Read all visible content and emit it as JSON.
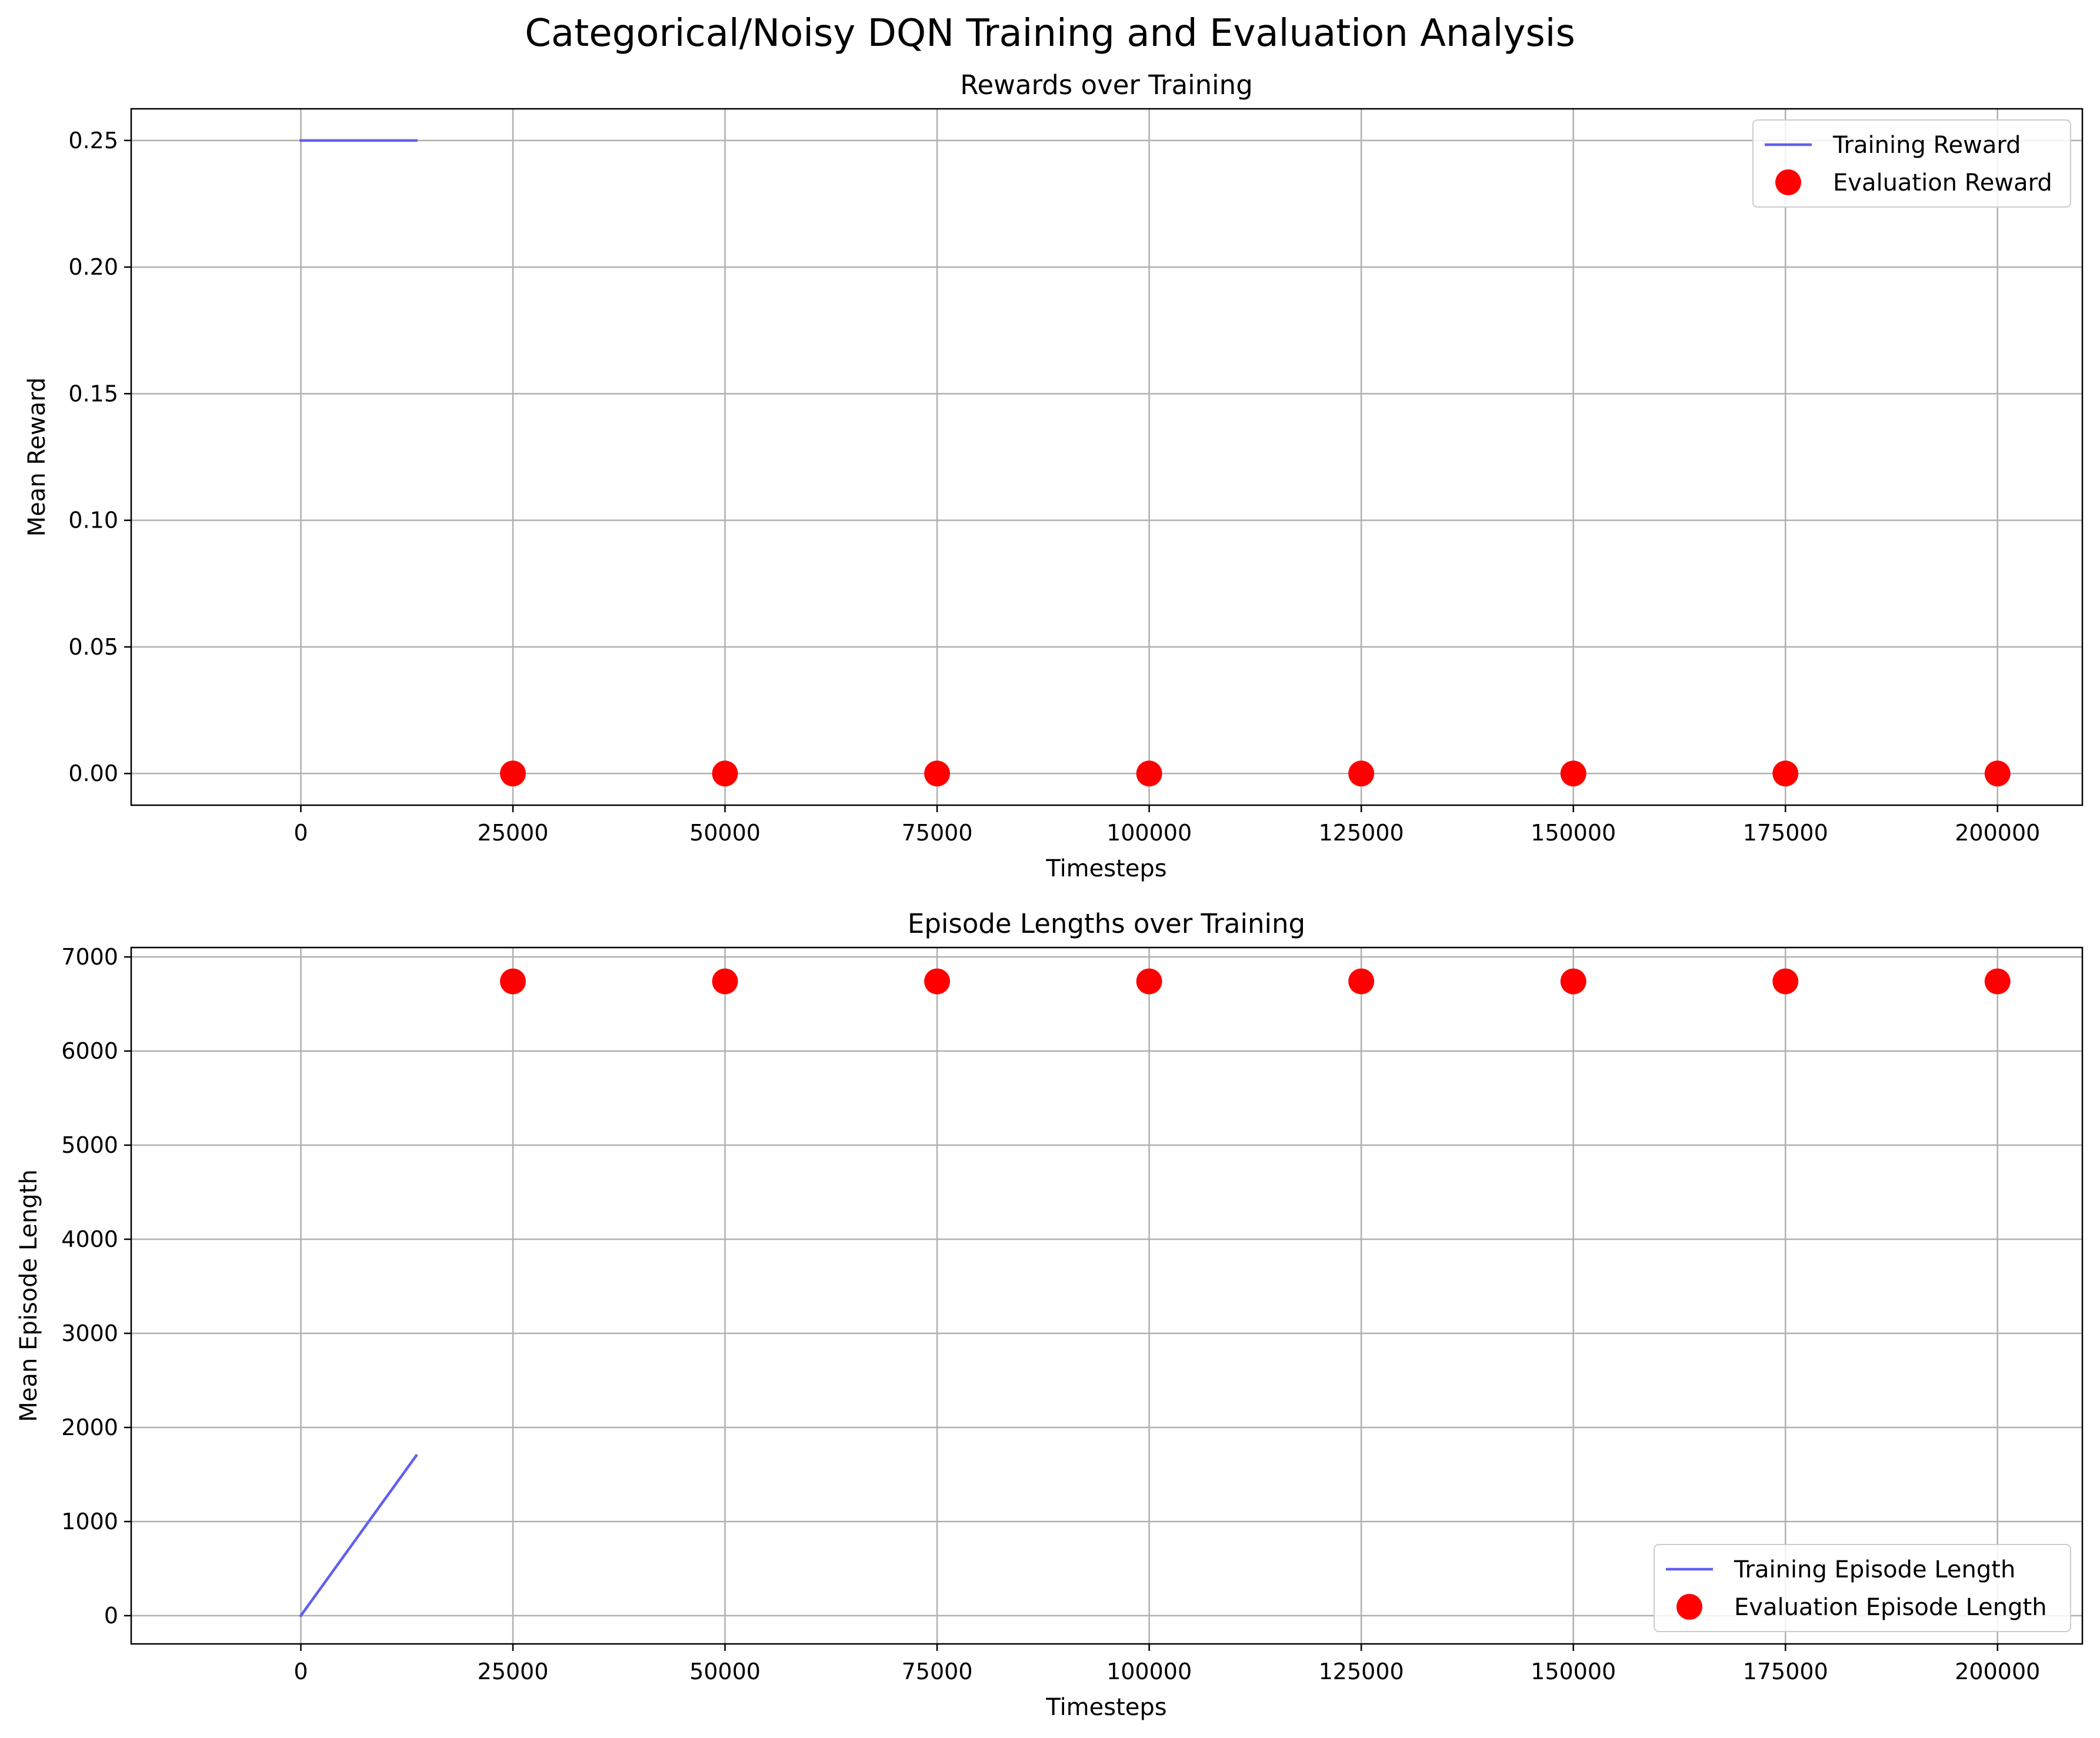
{
  "figure": {
    "suptitle": "Categorical/Noisy DQN Training and Evaluation Analysis"
  },
  "colors": {
    "training_line": "#6060f0",
    "evaluation_marker": "#ff0000",
    "grid": "#b0b0b0"
  },
  "chart_data": [
    {
      "type": "line",
      "title": "Rewards over Training",
      "xlabel": "Timesteps",
      "ylabel": "Mean Reward",
      "xlim": [
        -20000,
        210000
      ],
      "ylim": [
        -0.0125,
        0.2625
      ],
      "xticks": [
        0,
        25000,
        50000,
        75000,
        100000,
        125000,
        150000,
        175000,
        200000
      ],
      "xtick_labels": [
        "0",
        "25000",
        "50000",
        "75000",
        "100000",
        "125000",
        "150000",
        "175000",
        "200000"
      ],
      "yticks": [
        0.0,
        0.05,
        0.1,
        0.15,
        0.2,
        0.25
      ],
      "ytick_labels": [
        "0.00",
        "0.05",
        "0.10",
        "0.15",
        "0.20",
        "0.25"
      ],
      "grid": true,
      "legend_position": "top-right",
      "series": [
        {
          "name": "Training Reward",
          "kind": "line",
          "color": "#6060f0",
          "x": [
            0,
            13600
          ],
          "y": [
            0.25,
            0.25
          ]
        },
        {
          "name": "Evaluation Reward",
          "kind": "scatter",
          "color": "#ff0000",
          "x": [
            25000,
            50000,
            75000,
            100000,
            125000,
            150000,
            175000,
            200000
          ],
          "y": [
            0,
            0,
            0,
            0,
            0,
            0,
            0,
            0
          ]
        }
      ]
    },
    {
      "type": "line",
      "title": "Episode Lengths over Training",
      "xlabel": "Timesteps",
      "ylabel": "Mean Episode Length",
      "xlim": [
        -20000,
        210000
      ],
      "ylim": [
        -300,
        7100
      ],
      "xticks": [
        0,
        25000,
        50000,
        75000,
        100000,
        125000,
        150000,
        175000,
        200000
      ],
      "xtick_labels": [
        "0",
        "25000",
        "50000",
        "75000",
        "100000",
        "125000",
        "150000",
        "175000",
        "200000"
      ],
      "yticks": [
        0,
        1000,
        2000,
        3000,
        4000,
        5000,
        6000,
        7000
      ],
      "ytick_labels": [
        "0",
        "1000",
        "2000",
        "3000",
        "4000",
        "5000",
        "6000",
        "7000"
      ],
      "grid": true,
      "legend_position": "bottom-right",
      "series": [
        {
          "name": "Training Episode Length",
          "kind": "line",
          "color": "#6060f0",
          "x": [
            0,
            13600
          ],
          "y": [
            0,
            1700
          ]
        },
        {
          "name": "Evaluation Episode Length",
          "kind": "scatter",
          "color": "#ff0000",
          "x": [
            25000,
            50000,
            75000,
            100000,
            125000,
            150000,
            175000,
            200000
          ],
          "y": [
            6740,
            6740,
            6740,
            6740,
            6740,
            6740,
            6740,
            6740
          ]
        }
      ]
    }
  ]
}
